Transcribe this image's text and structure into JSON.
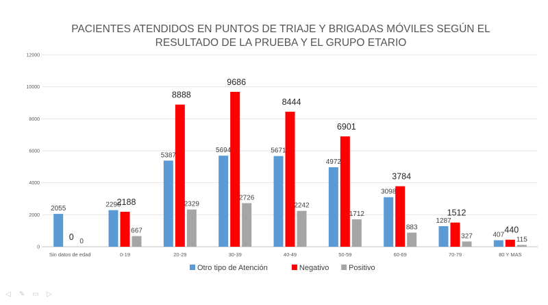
{
  "chart_data": {
    "type": "bar",
    "title_lines": [
      "PACIENTES ATENDIDOS EN PUNTOS DE TRIAJE Y BRIGADAS MÓVILES SEGÚN EL",
      "RESULTADO DE LA PRUEBA Y EL GRUPO ETARIO"
    ],
    "categories": [
      "Sin datos de edad",
      "0-19",
      "20-29",
      "30-39",
      "40-49",
      "50-59",
      "60-69",
      "70-79",
      "80 Y MAS"
    ],
    "series": [
      {
        "name": "Otro tipo de Atención",
        "color": "#5B9BD5",
        "values": [
          2055,
          2290,
          5387,
          5694,
          5671,
          4972,
          3098,
          1287,
          407
        ]
      },
      {
        "name": "Negativo",
        "color": "#FF0000",
        "values": [
          0,
          2188,
          8888,
          9686,
          8444,
          6901,
          3784,
          1512,
          440
        ]
      },
      {
        "name": "Positivo",
        "color": "#A5A5A5",
        "values": [
          0,
          667,
          2329,
          2726,
          2242,
          1712,
          883,
          327,
          115
        ]
      }
    ],
    "ylim": [
      0,
      12000
    ],
    "yticks": [
      0,
      2000,
      4000,
      6000,
      8000,
      10000,
      12000
    ],
    "grid": true,
    "legend": "bottom"
  },
  "toolbar": {
    "icons": [
      "arrow-left-icon",
      "pen-icon",
      "slides-icon",
      "arrow-right-icon"
    ]
  }
}
